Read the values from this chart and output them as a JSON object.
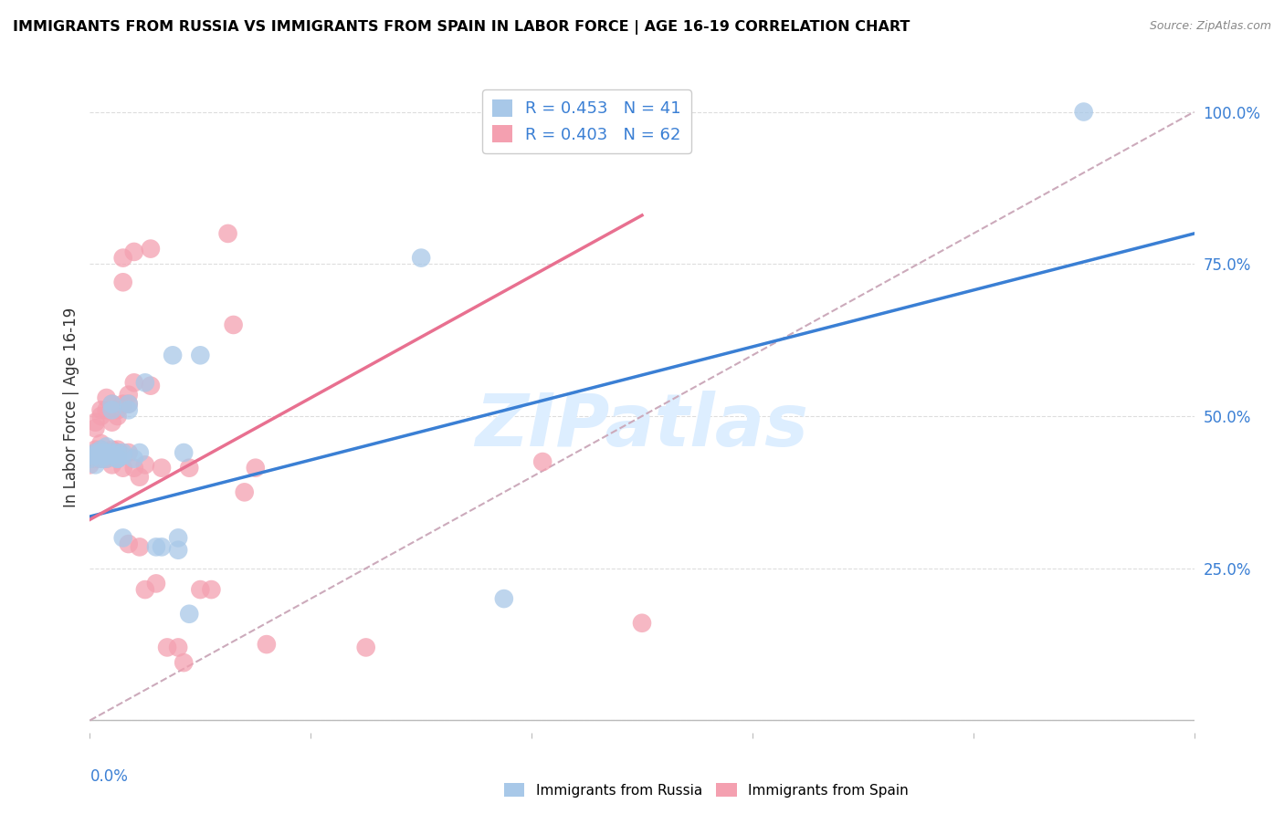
{
  "title": "IMMIGRANTS FROM RUSSIA VS IMMIGRANTS FROM SPAIN IN LABOR FORCE | AGE 16-19 CORRELATION CHART",
  "source": "Source: ZipAtlas.com",
  "ylabel": "In Labor Force | Age 16-19",
  "right_yticks": [
    0.0,
    0.25,
    0.5,
    0.75,
    1.0
  ],
  "right_yticklabels": [
    "",
    "25.0%",
    "50.0%",
    "75.0%",
    "100.0%"
  ],
  "legend_russia": "R = 0.453   N = 41",
  "legend_spain": "R = 0.403   N = 62",
  "legend_label_russia": "Immigrants from Russia",
  "legend_label_spain": "Immigrants from Spain",
  "russia_color": "#a8c8e8",
  "spain_color": "#f4a0b0",
  "russia_line_color": "#3a7fd4",
  "spain_line_color": "#e87090",
  "ref_line_color": "#ccaabb",
  "watermark": "ZIPatlas",
  "watermark_color": "#ddeeff",
  "russia_points_x": [
    0.0,
    0.0,
    0.001,
    0.001,
    0.001,
    0.002,
    0.002,
    0.002,
    0.002,
    0.003,
    0.003,
    0.003,
    0.003,
    0.003,
    0.003,
    0.004,
    0.004,
    0.004,
    0.004,
    0.005,
    0.005,
    0.005,
    0.006,
    0.006,
    0.006,
    0.007,
    0.007,
    0.008,
    0.009,
    0.01,
    0.012,
    0.013,
    0.015,
    0.016,
    0.016,
    0.017,
    0.018,
    0.02,
    0.06,
    0.075,
    0.18
  ],
  "russia_points_y": [
    0.435,
    0.43,
    0.44,
    0.42,
    0.435,
    0.44,
    0.445,
    0.435,
    0.43,
    0.45,
    0.44,
    0.435,
    0.435,
    0.435,
    0.43,
    0.52,
    0.51,
    0.44,
    0.435,
    0.43,
    0.44,
    0.43,
    0.44,
    0.435,
    0.3,
    0.52,
    0.51,
    0.43,
    0.44,
    0.555,
    0.285,
    0.285,
    0.6,
    0.28,
    0.3,
    0.44,
    0.175,
    0.6,
    0.76,
    0.2,
    1.0
  ],
  "spain_points_x": [
    0.0,
    0.0,
    0.001,
    0.001,
    0.001,
    0.001,
    0.001,
    0.002,
    0.002,
    0.002,
    0.002,
    0.002,
    0.002,
    0.003,
    0.003,
    0.003,
    0.003,
    0.003,
    0.004,
    0.004,
    0.004,
    0.004,
    0.004,
    0.004,
    0.005,
    0.005,
    0.005,
    0.005,
    0.005,
    0.006,
    0.006,
    0.006,
    0.006,
    0.007,
    0.007,
    0.007,
    0.007,
    0.008,
    0.008,
    0.008,
    0.009,
    0.009,
    0.01,
    0.01,
    0.011,
    0.011,
    0.012,
    0.013,
    0.014,
    0.016,
    0.017,
    0.018,
    0.02,
    0.022,
    0.025,
    0.026,
    0.028,
    0.03,
    0.032,
    0.05,
    0.082,
    0.1
  ],
  "spain_points_y": [
    0.435,
    0.42,
    0.49,
    0.48,
    0.445,
    0.44,
    0.43,
    0.51,
    0.5,
    0.455,
    0.445,
    0.44,
    0.43,
    0.53,
    0.51,
    0.44,
    0.435,
    0.43,
    0.52,
    0.51,
    0.49,
    0.445,
    0.44,
    0.42,
    0.51,
    0.5,
    0.445,
    0.44,
    0.43,
    0.76,
    0.72,
    0.52,
    0.415,
    0.535,
    0.52,
    0.44,
    0.29,
    0.77,
    0.555,
    0.415,
    0.4,
    0.285,
    0.42,
    0.215,
    0.775,
    0.55,
    0.225,
    0.415,
    0.12,
    0.12,
    0.095,
    0.415,
    0.215,
    0.215,
    0.8,
    0.65,
    0.375,
    0.415,
    0.125,
    0.12,
    0.425,
    0.16
  ],
  "xlim": [
    0.0,
    0.2
  ],
  "ylim": [
    -0.02,
    1.05
  ],
  "russia_line_x": [
    0.0,
    0.2
  ],
  "russia_line_y": [
    0.335,
    0.8
  ],
  "spain_line_x": [
    0.0,
    0.1
  ],
  "spain_line_y": [
    0.33,
    0.83
  ]
}
